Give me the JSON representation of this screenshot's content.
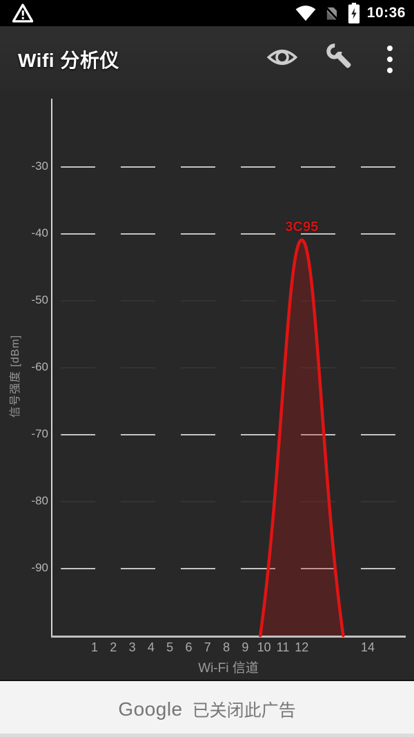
{
  "status_bar": {
    "time": "10:36",
    "icons": [
      "warning",
      "wifi",
      "no-sim",
      "battery-charging"
    ]
  },
  "app_bar": {
    "title": "Wifi 分析仪",
    "actions": [
      {
        "name": "eye",
        "label": "视图"
      },
      {
        "name": "wrench",
        "label": "设置"
      },
      {
        "name": "overflow-menu",
        "label": "更多"
      }
    ]
  },
  "chart_data": {
    "type": "area",
    "title": "",
    "xlabel": "Wi-Fi 信道",
    "ylabel": "信号强度 [dBm]",
    "ylim": [
      -100,
      -20
    ],
    "grid": "dashed-horizontal",
    "y_ticks": [
      {
        "label": "-30",
        "strong": true
      },
      {
        "label": "-40",
        "strong": true
      },
      {
        "label": "-50",
        "strong": false
      },
      {
        "label": "-60",
        "strong": false
      },
      {
        "label": "-70",
        "strong": true
      },
      {
        "label": "-80",
        "strong": false
      },
      {
        "label": "-90",
        "strong": true
      }
    ],
    "x_ticks": [
      "1",
      "2",
      "3",
      "4",
      "5",
      "6",
      "7",
      "8",
      "9",
      "10",
      "11",
      "12",
      "14"
    ],
    "series": [
      {
        "ssid": "3C95",
        "channel": 12,
        "signal_dbm": -41,
        "width_mhz": 22,
        "stroke_color": "#e01414",
        "fill_color": "rgba(190,20,20,0.27)"
      }
    ]
  },
  "ad_bar": {
    "brand": "Google",
    "message": "已关闭此广告"
  }
}
